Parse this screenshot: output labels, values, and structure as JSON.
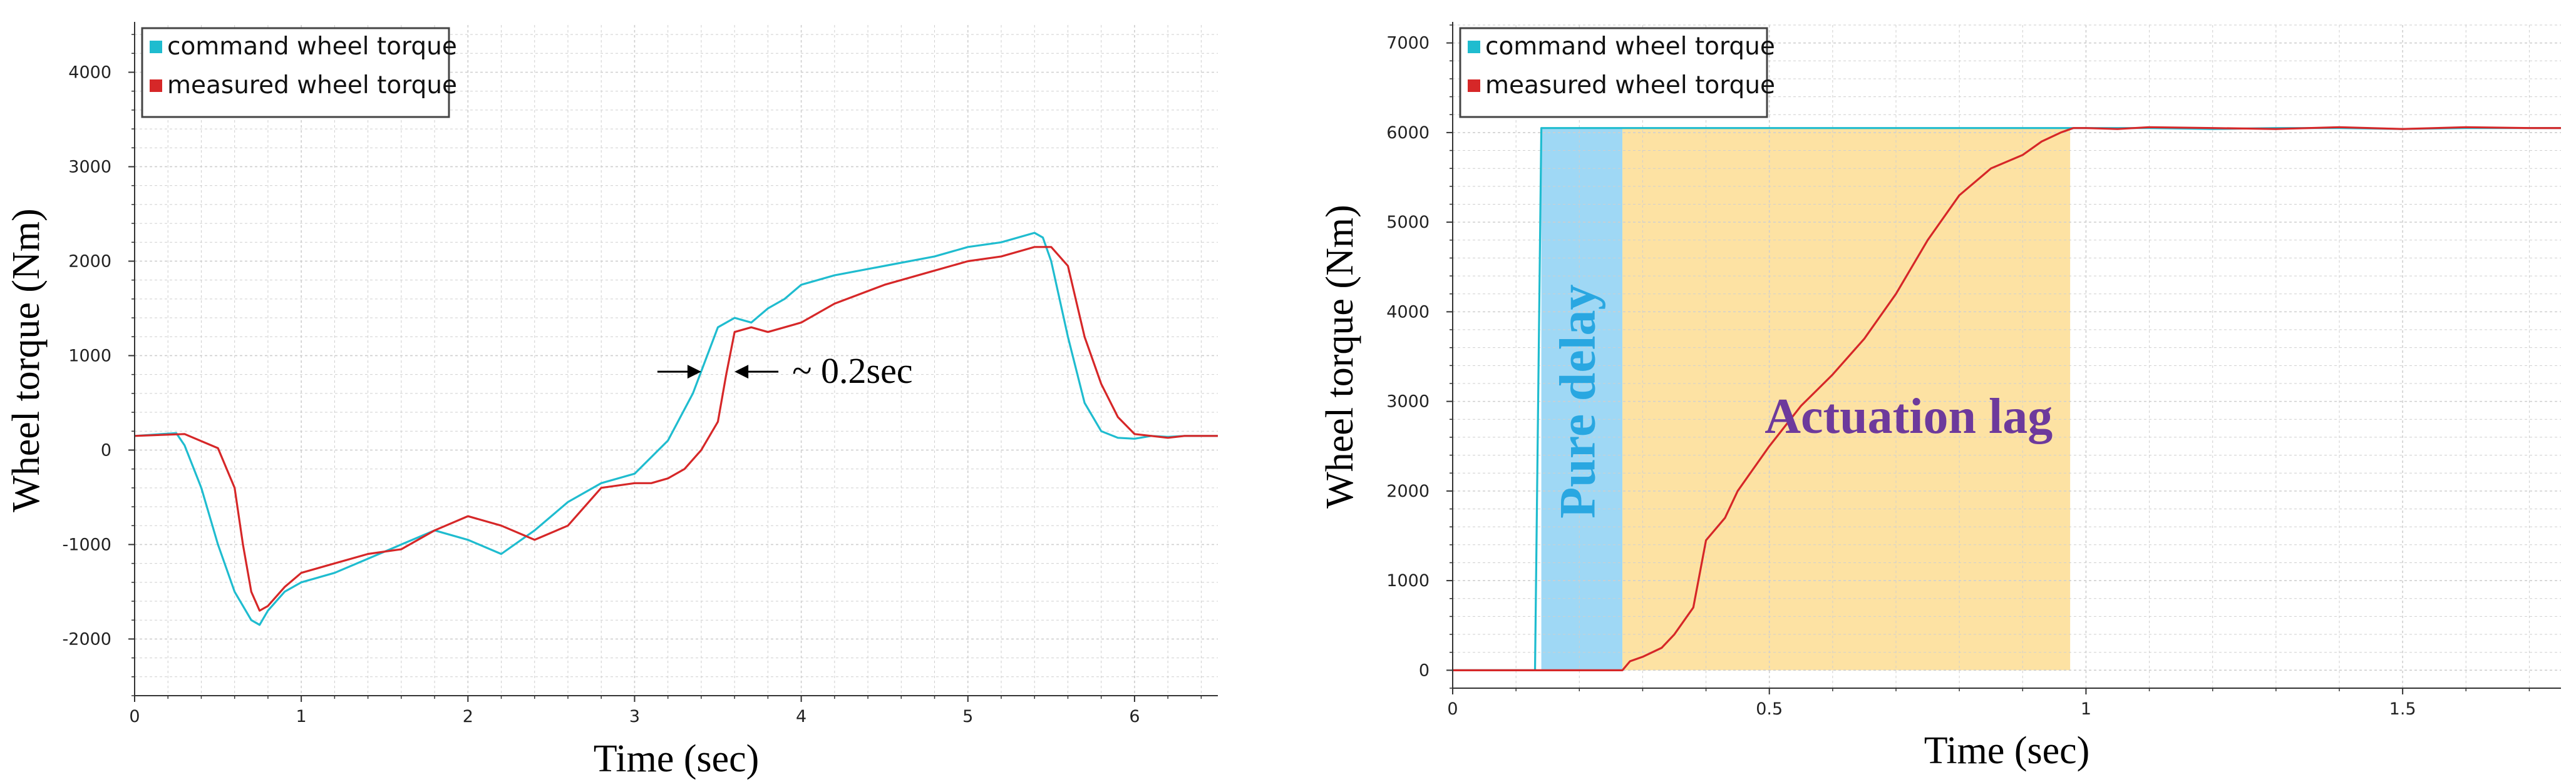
{
  "colors": {
    "command": "#1fbccf",
    "measured": "#d62728",
    "pure_delay": "#9fd8f5",
    "actuation_lag": "#fde2a3",
    "pure_delay_text": "#29a7e1",
    "actuation_lag_text": "#6d3a9c",
    "grid": "#cfcfcf"
  },
  "chart_data": [
    {
      "type": "line",
      "xlabel": "Time (sec)",
      "ylabel": "Wheel torque (Nm)",
      "xlim": [
        0,
        6.5
      ],
      "ylim": [
        -2600,
        4500
      ],
      "xticks": [
        0,
        1,
        2,
        3,
        4,
        5,
        6
      ],
      "yticks": [
        -2000,
        -1000,
        0,
        1000,
        2000,
        3000,
        4000
      ],
      "xtick_labels": [
        "0",
        "1",
        "2",
        "3",
        "4",
        "5",
        "6"
      ],
      "ytick_labels": [
        "-2000",
        "-1000",
        "0",
        "1000",
        "2000",
        "3000",
        "4000"
      ],
      "legend": {
        "position": "top-left",
        "entries": [
          "command wheel torque",
          "measured wheel torque"
        ]
      },
      "grid": true,
      "annotation": {
        "text": "~ 0.2sec",
        "x_from": 3.4,
        "x_to": 3.6,
        "y": 830
      },
      "series": [
        {
          "name": "command wheel torque",
          "color_key": "command",
          "x": [
            0,
            0.25,
            0.3,
            0.4,
            0.5,
            0.6,
            0.7,
            0.75,
            0.8,
            0.9,
            1.0,
            1.2,
            1.4,
            1.6,
            1.8,
            2.0,
            2.2,
            2.4,
            2.6,
            2.8,
            3.0,
            3.2,
            3.35,
            3.5,
            3.6,
            3.7,
            3.8,
            3.9,
            4.0,
            4.2,
            4.5,
            4.8,
            5.0,
            5.2,
            5.4,
            5.45,
            5.5,
            5.6,
            5.7,
            5.8,
            5.9,
            6.0,
            6.1,
            6.2,
            6.3,
            6.5
          ],
          "y": [
            150,
            180,
            50,
            -400,
            -1000,
            -1500,
            -1800,
            -1850,
            -1700,
            -1500,
            -1400,
            -1300,
            -1150,
            -1000,
            -850,
            -950,
            -1100,
            -850,
            -550,
            -350,
            -250,
            100,
            600,
            1300,
            1400,
            1350,
            1500,
            1600,
            1750,
            1850,
            1950,
            2050,
            2150,
            2200,
            2300,
            2250,
            2000,
            1200,
            500,
            200,
            130,
            120,
            150,
            140,
            150,
            150
          ]
        },
        {
          "name": "measured wheel torque",
          "color_key": "measured",
          "x": [
            0,
            0.3,
            0.5,
            0.6,
            0.65,
            0.7,
            0.75,
            0.8,
            0.9,
            1.0,
            1.2,
            1.4,
            1.6,
            1.8,
            2.0,
            2.2,
            2.4,
            2.6,
            2.8,
            3.0,
            3.1,
            3.2,
            3.3,
            3.4,
            3.5,
            3.55,
            3.6,
            3.7,
            3.8,
            4.0,
            4.2,
            4.5,
            4.8,
            5.0,
            5.2,
            5.4,
            5.5,
            5.6,
            5.7,
            5.8,
            5.9,
            6.0,
            6.1,
            6.2,
            6.3,
            6.5
          ],
          "y": [
            150,
            170,
            20,
            -400,
            -1000,
            -1500,
            -1700,
            -1650,
            -1450,
            -1300,
            -1200,
            -1100,
            -1050,
            -850,
            -700,
            -800,
            -950,
            -800,
            -400,
            -350,
            -350,
            -300,
            -200,
            0,
            300,
            800,
            1250,
            1300,
            1250,
            1350,
            1550,
            1750,
            1900,
            2000,
            2050,
            2150,
            2150,
            1950,
            1200,
            700,
            350,
            170,
            150,
            130,
            150,
            150
          ]
        }
      ]
    },
    {
      "type": "line",
      "xlabel": "Time (sec)",
      "ylabel": "Wheel torque (Nm)",
      "xlim": [
        0,
        1.75
      ],
      "ylim": [
        -200,
        7200
      ],
      "xticks": [
        0,
        0.5,
        1,
        1.5
      ],
      "yticks": [
        0,
        1000,
        2000,
        3000,
        4000,
        5000,
        6000,
        7000
      ],
      "xtick_labels": [
        "0",
        "0.5",
        "1",
        "1.5"
      ],
      "ytick_labels": [
        "0",
        "1000",
        "2000",
        "3000",
        "4000",
        "5000",
        "6000",
        "7000"
      ],
      "legend": {
        "position": "top-left",
        "entries": [
          "command wheel torque",
          "measured wheel torque"
        ]
      },
      "grid": true,
      "regions": [
        {
          "label": "Pure delay",
          "x0": 0.14,
          "x1": 0.268,
          "y0": 0,
          "y1": 6050,
          "color_key": "pure_delay",
          "text_color_key": "pure_delay_text",
          "rotated": true
        },
        {
          "label": "Actuation lag",
          "x0": 0.268,
          "x1": 0.975,
          "y0": 0,
          "y1": 6050,
          "color_key": "actuation_lag",
          "text_color_key": "actuation_lag_text",
          "rotated": false
        }
      ],
      "series": [
        {
          "name": "command wheel torque",
          "color_key": "command",
          "x": [
            0,
            0.13,
            0.14,
            0.2,
            0.5,
            0.9,
            1.0,
            1.1,
            1.2,
            1.3,
            1.4,
            1.5,
            1.6,
            1.7,
            1.75
          ],
          "y": [
            0,
            0,
            6050,
            6050,
            6050,
            6050,
            6050,
            6050,
            6040,
            6050,
            6050,
            6040,
            6050,
            6050,
            6050
          ]
        },
        {
          "name": "measured wheel torque",
          "color_key": "measured",
          "x": [
            0,
            0.268,
            0.28,
            0.3,
            0.33,
            0.35,
            0.38,
            0.4,
            0.43,
            0.45,
            0.5,
            0.55,
            0.6,
            0.65,
            0.7,
            0.75,
            0.8,
            0.85,
            0.9,
            0.93,
            0.96,
            0.98,
            1.0,
            1.05,
            1.1,
            1.2,
            1.3,
            1.4,
            1.5,
            1.6,
            1.7,
            1.75
          ],
          "y": [
            0,
            0,
            100,
            150,
            250,
            400,
            700,
            1450,
            1700,
            2000,
            2500,
            2950,
            3300,
            3700,
            4200,
            4800,
            5300,
            5600,
            5750,
            5900,
            6000,
            6050,
            6050,
            6040,
            6060,
            6050,
            6040,
            6060,
            6040,
            6060,
            6050,
            6050
          ]
        }
      ]
    }
  ]
}
